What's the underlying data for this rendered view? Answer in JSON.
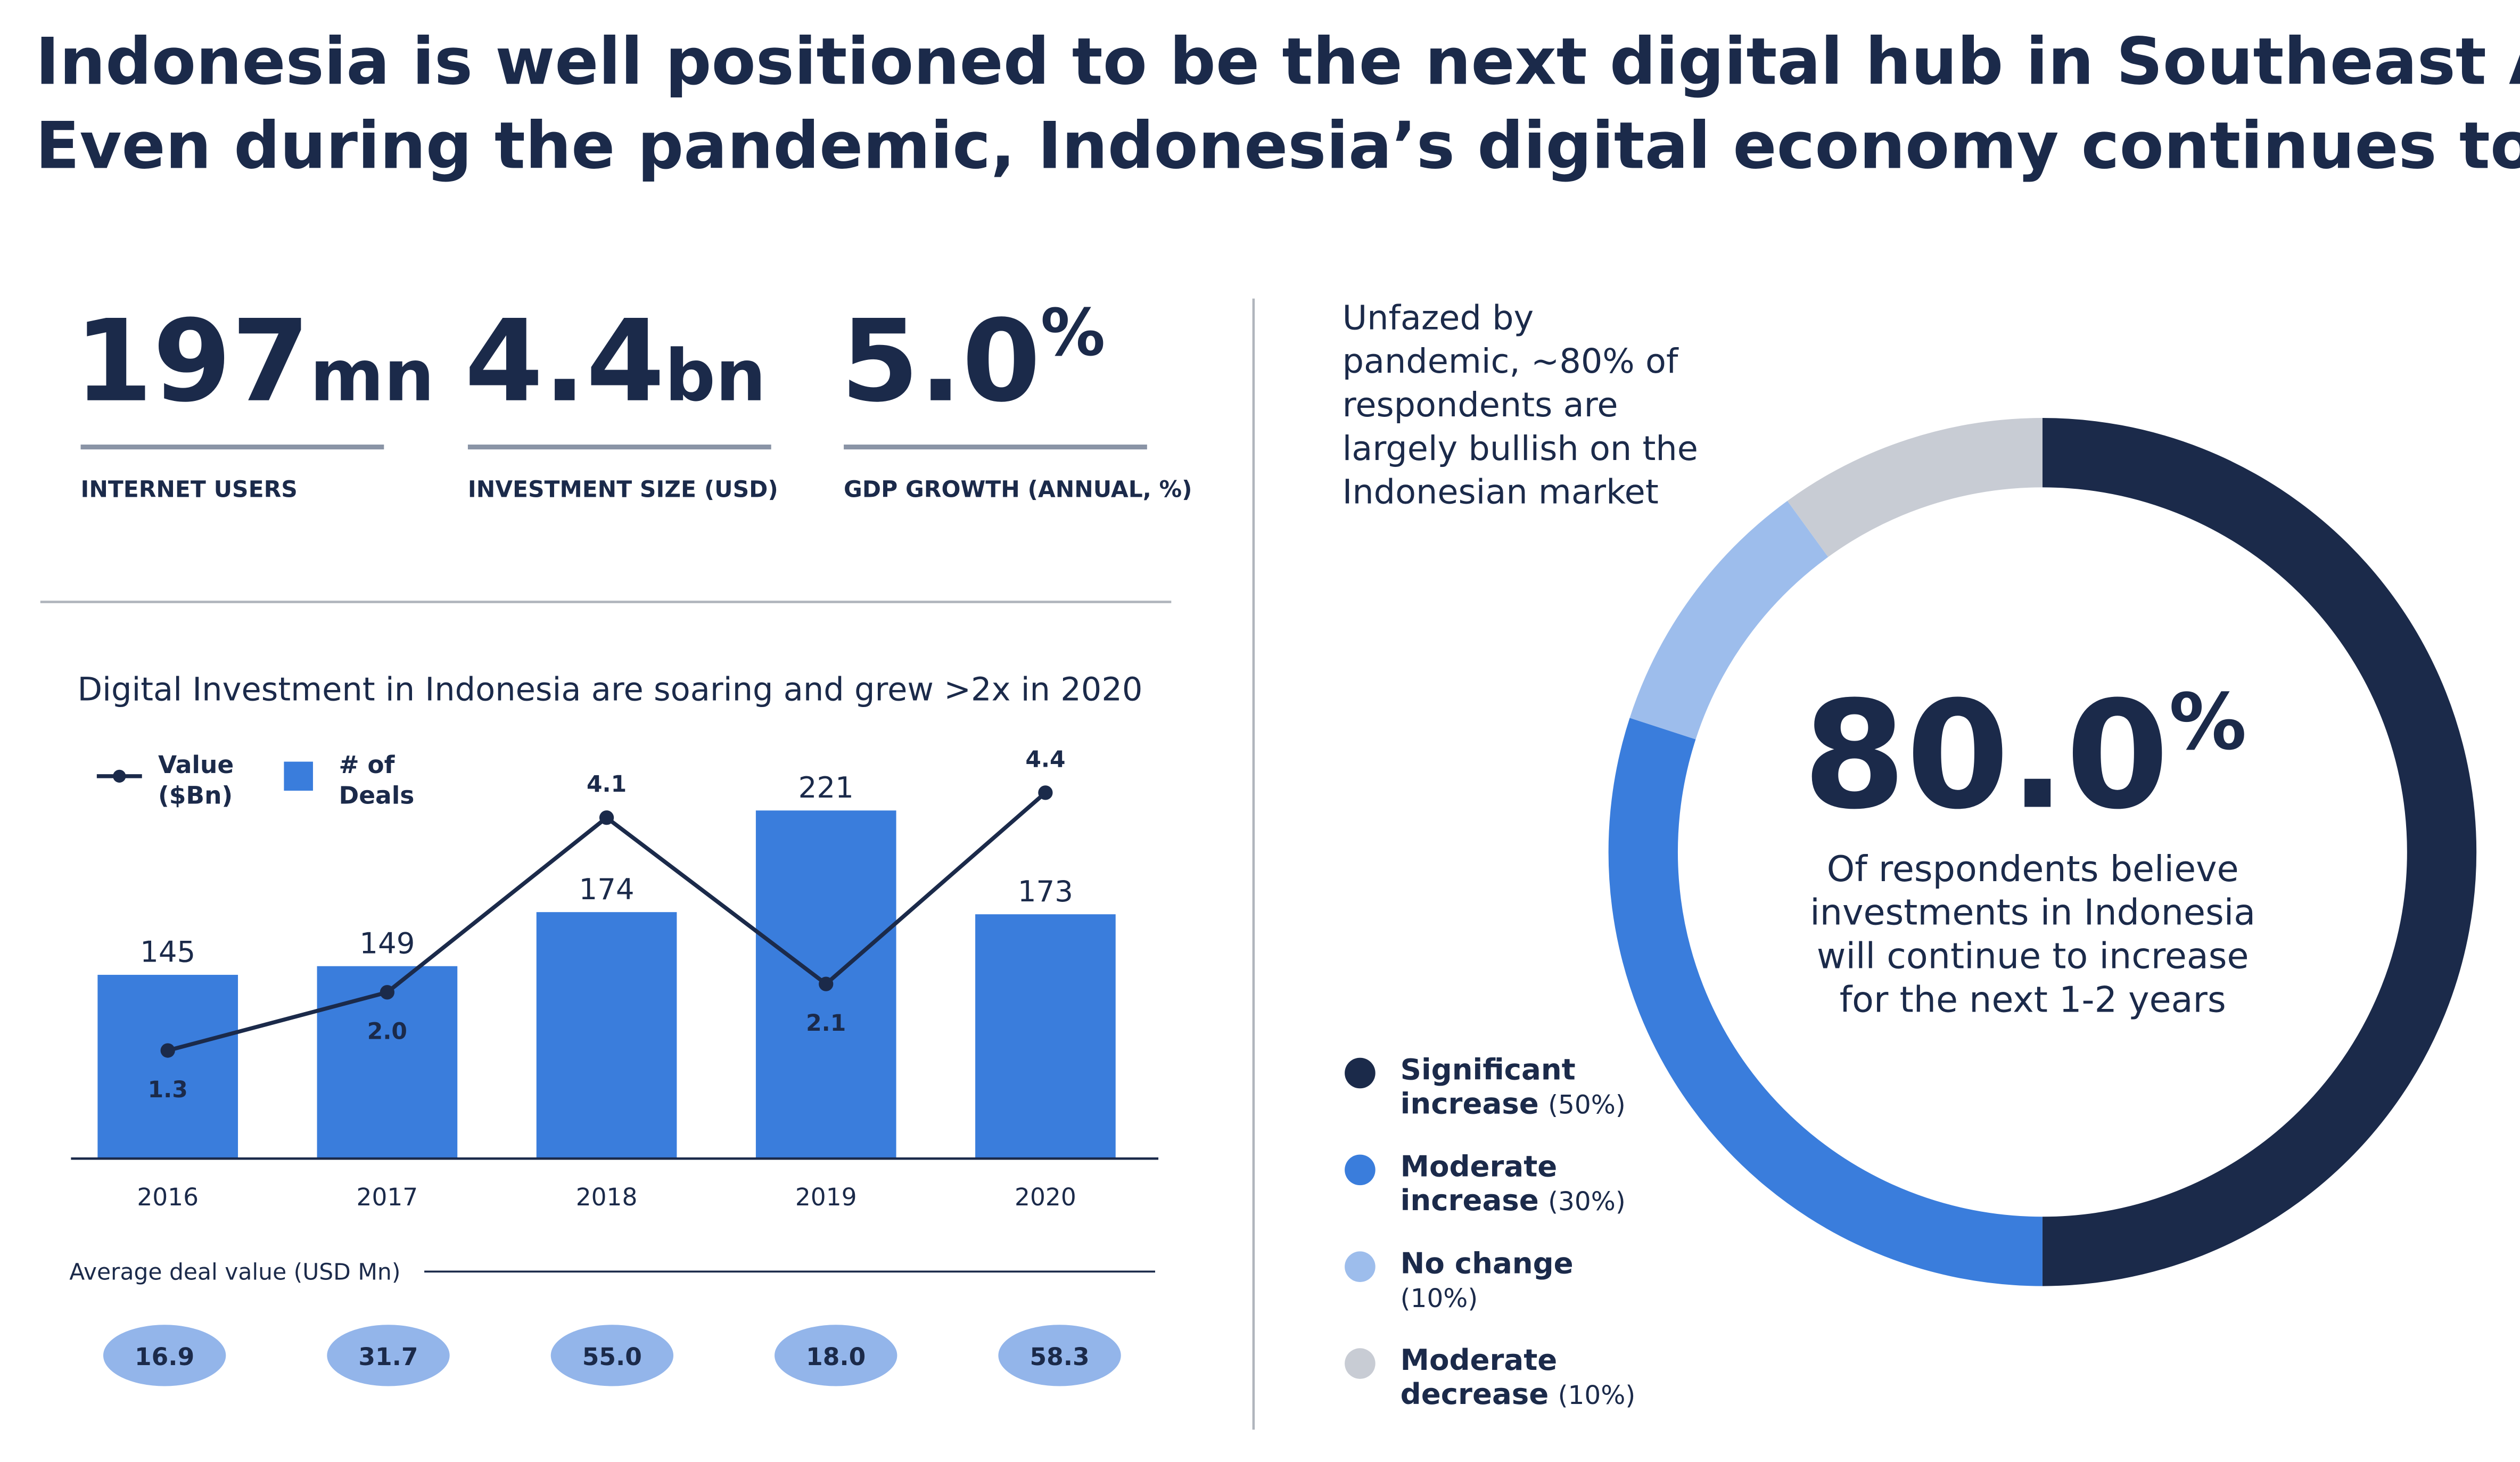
{
  "header": {
    "title_lines": [
      "Indonesia is well positioned to be the next digital hub in Southeast Asia.",
      "Even during the pandemic, Indonesia’s digital economy continues to thrive."
    ]
  },
  "stats": [
    {
      "value": "197",
      "unit": "mn",
      "label": "INTERNET USERS"
    },
    {
      "value": "4.4",
      "unit": "bn",
      "label": "INVESTMENT SIZE (USD)"
    },
    {
      "value": "5.0",
      "unit": "%",
      "label": "GDP GROWTH (ANNUAL, %)"
    }
  ],
  "chart_data": [
    {
      "type": "bar_line",
      "title": "Digital Investment in Indonesia are soaring and grew >2x in 2020",
      "categories": [
        "2016",
        "2017",
        "2018",
        "2019",
        "2020"
      ],
      "ylim": [
        60,
        260
      ],
      "y2lim": [
        0,
        5.2
      ],
      "series": [
        {
          "name": "Value ($Bn)",
          "type": "line",
          "axis": "y2",
          "color": "#1b2a4a",
          "values": [
            1.3,
            2.0,
            4.1,
            2.1,
            4.4
          ],
          "value_labels": [
            "1.3",
            "2.0",
            "4.1",
            "2.1",
            "4.4"
          ]
        },
        {
          "name": "# of Deals",
          "type": "bar",
          "color": "#3a7ddc",
          "values": [
            145,
            149,
            174,
            221,
            173
          ]
        }
      ],
      "average_deal_value": {
        "label": "Average deal value (USD Mn)",
        "color": "#93b5ea",
        "values": [
          16.9,
          31.7,
          55.0,
          18.0,
          58.3
        ],
        "value_labels": [
          "16.9",
          "31.7",
          "55.0",
          "18.0",
          "58.3"
        ]
      }
    },
    {
      "type": "donut",
      "title": "Unfazed by pandemic, ~80% of respondents are largely bullish on the Indonesian market",
      "center_value": "80.0",
      "center_unit": "%",
      "center_text": "Of respondents believe investments in Indonesia will continue to increase for the next 1-2 years",
      "categories": [
        "Significant increase",
        "Moderate increase",
        "No change",
        "Moderate decrease"
      ],
      "values": [
        50,
        30,
        10,
        10
      ],
      "value_labels": [
        "(50%)",
        "(30%)",
        "(10%)",
        "(10%)"
      ],
      "colors": [
        "#1b2a4a",
        "#3a7ddc",
        "#9dbdec",
        "#c8ccd4"
      ]
    }
  ]
}
